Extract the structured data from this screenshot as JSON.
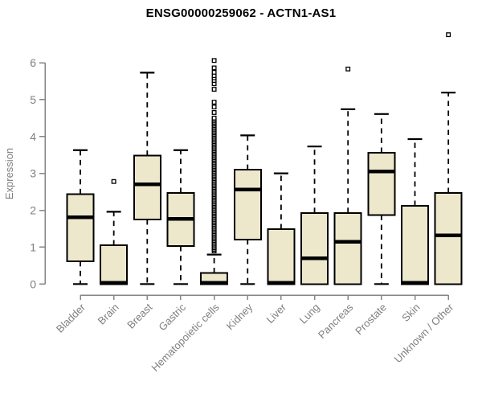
{
  "figure": {
    "title": "ENSG00000259062 - ACTN1-AS1"
  },
  "chart_data": {
    "type": "boxplot",
    "title": "ENSG00000259062 - ACTN1-AS1",
    "xlabel": "",
    "ylabel": "Expression",
    "ylim": [
      0,
      6
    ],
    "yticks": [
      0,
      1,
      2,
      3,
      4,
      5,
      6
    ],
    "grid": false,
    "legend": "none",
    "categories": [
      "Bladder",
      "Brain",
      "Breast",
      "Gastric",
      "Hematopoietic cells",
      "Kidney",
      "Liver",
      "Lung",
      "Pancreas",
      "Prostate",
      "Skin",
      "Unknown / Other"
    ],
    "boxes": [
      {
        "name": "Bladder",
        "whisker_low": 0,
        "q1": 0.62,
        "median": 1.81,
        "q3": 2.44,
        "whisker_high": 3.63,
        "outliers": []
      },
      {
        "name": "Brain",
        "whisker_low": 0,
        "q1": 0,
        "median": 0.03,
        "q3": 1.05,
        "whisker_high": 1.96,
        "outliers": [
          2.78
        ]
      },
      {
        "name": "Breast",
        "whisker_low": 0,
        "q1": 1.75,
        "median": 2.7,
        "q3": 3.48,
        "whisker_high": 5.73,
        "outliers": []
      },
      {
        "name": "Gastric",
        "whisker_low": 0,
        "q1": 1.03,
        "median": 1.77,
        "q3": 2.47,
        "whisker_high": 3.63,
        "outliers": []
      },
      {
        "name": "Hematopoietic cells",
        "whisker_low": 0,
        "q1": 0,
        "median": 0.03,
        "q3": 0.3,
        "whisker_high": 0.8,
        "outliers": [
          4.65,
          4.8,
          4.93,
          5.28,
          5.43,
          5.52,
          5.59,
          5.65,
          5.74,
          5.86,
          6.06
        ],
        "outlier_band": {
          "min": 0.9,
          "max": 4.5,
          "step": 0.04
        }
      },
      {
        "name": "Kidney",
        "whisker_low": 0,
        "q1": 1.21,
        "median": 2.56,
        "q3": 3.1,
        "whisker_high": 4.03,
        "outliers": []
      },
      {
        "name": "Liver",
        "whisker_low": 0,
        "q1": 0,
        "median": 0.03,
        "q3": 1.49,
        "whisker_high": 3.0,
        "outliers": []
      },
      {
        "name": "Lung",
        "whisker_low": 0,
        "q1": 0,
        "median": 0.7,
        "q3": 1.93,
        "whisker_high": 3.73,
        "outliers": []
      },
      {
        "name": "Pancreas",
        "whisker_low": 0,
        "q1": 0,
        "median": 1.15,
        "q3": 1.93,
        "whisker_high": 4.74,
        "outliers": [
          5.83
        ]
      },
      {
        "name": "Prostate",
        "whisker_low": 0,
        "q1": 1.87,
        "median": 3.05,
        "q3": 3.56,
        "whisker_high": 4.61,
        "outliers": []
      },
      {
        "name": "Skin",
        "whisker_low": 0,
        "q1": 0,
        "median": 0.03,
        "q3": 2.12,
        "whisker_high": 3.93,
        "outliers": []
      },
      {
        "name": "Unknown / Other",
        "whisker_low": 0,
        "q1": 0,
        "median": 1.32,
        "q3": 2.47,
        "whisker_high": 5.19,
        "outliers": [
          6.76
        ]
      }
    ],
    "colors": {
      "box_fill": "#ede8cc",
      "box_stroke": "#000000",
      "median": "#000000",
      "whisker": "#000000",
      "outlier_stroke": "#000000",
      "axis": "#858585",
      "tick_label": "#7f7f7f",
      "axis_label": "#7f7f7f",
      "title": "#000000",
      "background": "#ffffff"
    }
  }
}
